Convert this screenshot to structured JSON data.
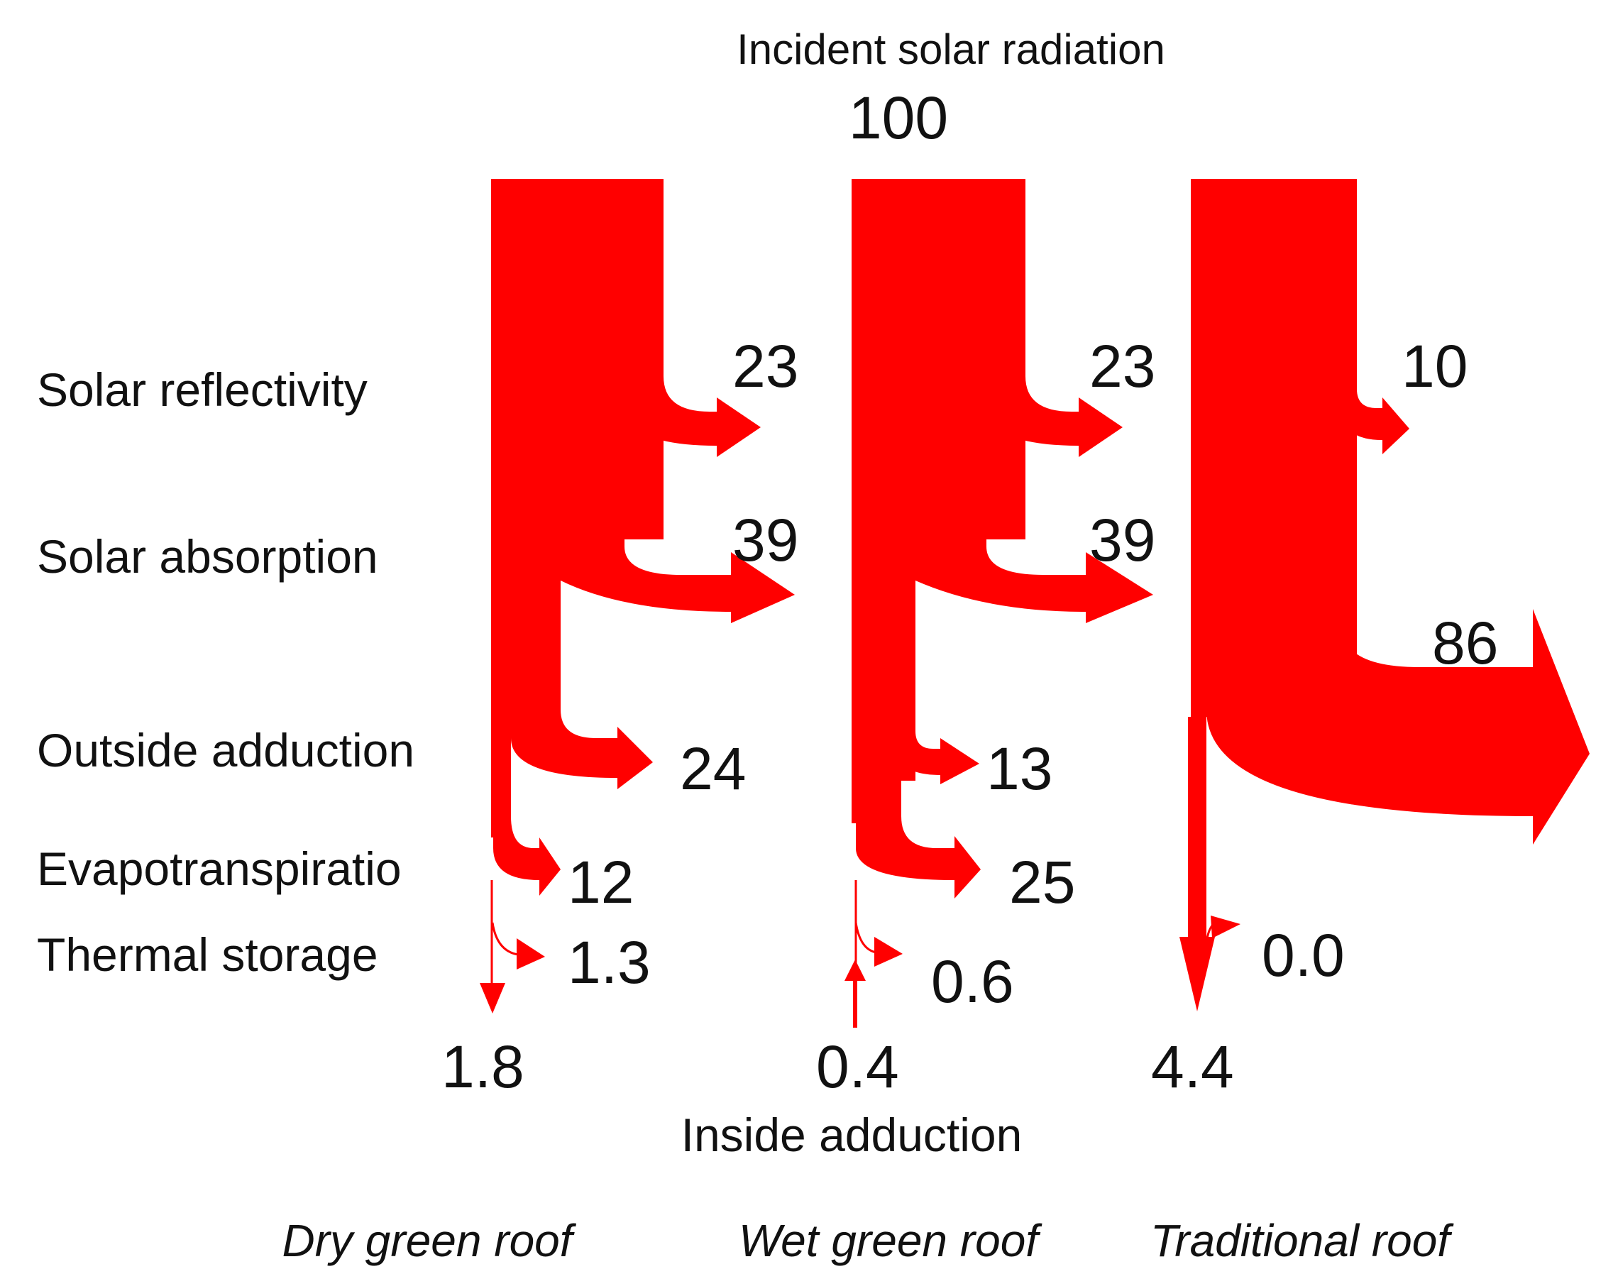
{
  "diagram": {
    "title": "Incident solar radiation",
    "incident_value": "100",
    "bottom_label": "Inside adduction",
    "flow_color": "#ff0000",
    "rows": [
      "Solar reflectivity",
      "Solar absorption",
      "Outside adduction",
      "Evapotranspiratio",
      "Thermal storage"
    ],
    "columns": [
      {
        "name": "Dry green roof",
        "reflectivity": "23",
        "absorption": "39",
        "outside_adduction": "24",
        "evapotranspiration": "12",
        "thermal_storage": "1.3",
        "inside_adduction": "1.8"
      },
      {
        "name": "Wet green roof",
        "reflectivity": "23",
        "absorption": "39",
        "outside_adduction": "13",
        "evapotranspiration": "25",
        "thermal_storage": "0.6",
        "inside_adduction": "0.4"
      },
      {
        "name": "Traditional roof",
        "reflectivity": "10",
        "absorption": "86",
        "thermal_storage": "0.0",
        "inside_adduction": "4.4"
      }
    ]
  }
}
